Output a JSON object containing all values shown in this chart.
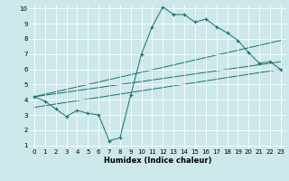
{
  "title": "",
  "xlabel": "Humidex (Indice chaleur)",
  "bg_color": "#cce8ea",
  "grid_color": "#ffffff",
  "line_color": "#1a7070",
  "xlim": [
    -0.5,
    23.5
  ],
  "ylim": [
    0.8,
    10.2
  ],
  "xticks": [
    0,
    1,
    2,
    3,
    4,
    5,
    6,
    7,
    8,
    9,
    10,
    11,
    12,
    13,
    14,
    15,
    16,
    17,
    18,
    19,
    20,
    21,
    22,
    23
  ],
  "yticks": [
    1,
    2,
    3,
    4,
    5,
    6,
    7,
    8,
    9,
    10
  ],
  "line1_x": [
    0,
    1,
    2,
    3,
    4,
    5,
    6,
    7,
    8,
    9,
    10,
    11,
    12,
    13,
    14,
    15,
    16,
    17,
    18,
    19,
    20,
    21,
    22,
    23
  ],
  "line1_y": [
    4.2,
    3.9,
    3.4,
    2.9,
    3.3,
    3.1,
    3.0,
    1.3,
    1.5,
    4.3,
    7.0,
    8.8,
    10.1,
    9.6,
    9.6,
    9.1,
    9.3,
    8.8,
    8.4,
    7.9,
    7.1,
    6.4,
    6.5,
    6.0
  ],
  "line2_x": [
    0,
    23
  ],
  "line2_y": [
    4.2,
    7.9
  ],
  "line3_x": [
    0,
    23
  ],
  "line3_y": [
    4.2,
    6.5
  ],
  "line4_x": [
    0,
    23
  ],
  "line4_y": [
    3.5,
    6.0
  ],
  "xlabel_fontsize": 6.0,
  "tick_fontsize": 5.0
}
